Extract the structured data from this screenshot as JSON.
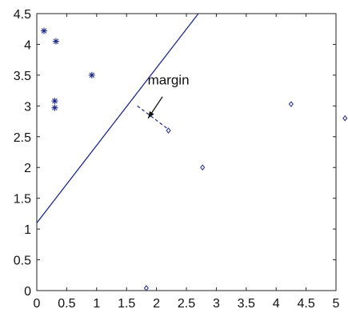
{
  "chart_data": {
    "type": "scatter",
    "title": "",
    "xlabel": "",
    "ylabel": "",
    "xlim": [
      0,
      5
    ],
    "ylim": [
      0,
      4.5
    ],
    "grid": false,
    "xticks": [
      0,
      0.5,
      1,
      1.5,
      2,
      2.5,
      3,
      3.5,
      4,
      4.5,
      5
    ],
    "xtick_labels": [
      "0",
      "0.5",
      "1",
      "1.5",
      "2",
      "2.5",
      "3",
      "3.5",
      "4",
      "4.5",
      "5"
    ],
    "yticks": [
      0,
      0.5,
      1,
      1.5,
      2,
      2.5,
      3,
      3.5,
      4,
      4.5
    ],
    "ytick_labels": [
      "0",
      "0.5",
      "1",
      "1.5",
      "2",
      "2.5",
      "3",
      "3.5",
      "4",
      "4.5"
    ],
    "series": [
      {
        "marker": "asterisk",
        "color": "#1f2a8c",
        "points": [
          [
            0.12,
            4.22
          ],
          [
            0.32,
            4.05
          ],
          [
            0.92,
            3.5
          ],
          [
            0.3,
            3.08
          ],
          [
            0.3,
            2.97
          ]
        ]
      },
      {
        "marker": "diamond",
        "color": "#1f2a8c",
        "points": [
          [
            2.2,
            2.6
          ],
          [
            2.77,
            2.0
          ],
          [
            4.25,
            3.03
          ],
          [
            5.15,
            2.8
          ],
          [
            1.83,
            0.04
          ]
        ]
      }
    ],
    "decision_line": {
      "style": "solid",
      "color": "#1f2a8c",
      "points": [
        [
          0,
          1.1
        ],
        [
          2.7,
          4.5
        ]
      ]
    },
    "margin_line": {
      "style": "dashed",
      "color": "#1f2a8c",
      "points": [
        [
          1.68,
          3.0
        ],
        [
          2.2,
          2.62
        ]
      ]
    },
    "annotation": {
      "text": "margin",
      "text_at": [
        2.2,
        3.35
      ],
      "arrow_from": [
        2.1,
        3.15
      ],
      "arrow_to": [
        1.86,
        2.8
      ]
    }
  }
}
